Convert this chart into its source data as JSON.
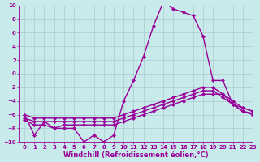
{
  "title": "",
  "xlabel": "Windchill (Refroidissement éolien,°C)",
  "ylabel": "",
  "xlim": [
    -0.5,
    23
  ],
  "ylim": [
    -10,
    10
  ],
  "xticks": [
    0,
    1,
    2,
    3,
    4,
    5,
    6,
    7,
    8,
    9,
    10,
    11,
    12,
    13,
    14,
    15,
    16,
    17,
    18,
    19,
    20,
    21,
    22,
    23
  ],
  "yticks": [
    -10,
    -8,
    -6,
    -4,
    -2,
    0,
    2,
    4,
    6,
    8,
    10
  ],
  "bg_color": "#c8eaea",
  "line_color": "#990099",
  "grid_color": "#aacccc",
  "lines": [
    {
      "x": [
        0,
        1,
        2,
        3,
        4,
        5,
        6,
        7,
        8,
        9,
        10,
        11,
        12,
        13,
        14,
        15,
        16,
        17,
        18,
        19,
        20,
        21,
        22,
        23
      ],
      "y": [
        -6.0,
        -9.0,
        -7.0,
        -8.0,
        -8.0,
        -8.0,
        -10.0,
        -9.0,
        -10.0,
        -9.0,
        -4.0,
        -1.0,
        2.5,
        7.0,
        10.5,
        9.5,
        9.0,
        8.5,
        5.5,
        -1.0,
        -1.0,
        -4.5,
        -5.0,
        -5.5
      ],
      "marker": "D",
      "markersize": 2.0,
      "linewidth": 1.0
    },
    {
      "x": [
        0,
        1,
        2,
        3,
        4,
        5,
        6,
        7,
        8,
        9,
        10,
        11,
        12,
        13,
        14,
        15,
        16,
        17,
        18,
        19,
        20,
        21,
        22,
        23
      ],
      "y": [
        -6.0,
        -6.5,
        -6.5,
        -6.5,
        -6.5,
        -6.5,
        -6.5,
        -6.5,
        -6.5,
        -6.5,
        -6.0,
        -5.5,
        -5.0,
        -4.5,
        -4.0,
        -3.5,
        -3.0,
        -2.5,
        -2.0,
        -2.0,
        -3.0,
        -4.0,
        -5.0,
        -5.5
      ],
      "marker": "D",
      "markersize": 2.0,
      "linewidth": 1.0
    },
    {
      "x": [
        0,
        1,
        2,
        3,
        4,
        5,
        6,
        7,
        8,
        9,
        10,
        11,
        12,
        13,
        14,
        15,
        16,
        17,
        18,
        19,
        20,
        21,
        22,
        23
      ],
      "y": [
        -6.5,
        -7.0,
        -7.0,
        -7.0,
        -7.0,
        -7.0,
        -7.0,
        -7.0,
        -7.0,
        -7.0,
        -6.5,
        -6.0,
        -5.5,
        -5.0,
        -4.5,
        -4.0,
        -3.5,
        -3.0,
        -2.5,
        -2.5,
        -3.5,
        -4.5,
        -5.5,
        -5.8
      ],
      "marker": "D",
      "markersize": 2.0,
      "linewidth": 1.0
    },
    {
      "x": [
        0,
        1,
        2,
        3,
        4,
        5,
        6,
        7,
        8,
        9,
        10,
        11,
        12,
        13,
        14,
        15,
        16,
        17,
        18,
        19,
        20,
        21,
        22,
        23
      ],
      "y": [
        -6.8,
        -7.5,
        -7.5,
        -8.0,
        -7.5,
        -7.5,
        -7.5,
        -7.5,
        -7.5,
        -7.5,
        -7.0,
        -6.5,
        -6.0,
        -5.5,
        -5.0,
        -4.5,
        -4.0,
        -3.5,
        -3.0,
        -3.0,
        -3.0,
        -4.5,
        -5.5,
        -6.0
      ],
      "marker": "D",
      "markersize": 2.0,
      "linewidth": 1.0
    }
  ],
  "tick_fontsize": 5.0,
  "xlabel_fontsize": 6.0,
  "figsize": [
    3.2,
    2.0
  ],
  "dpi": 100
}
